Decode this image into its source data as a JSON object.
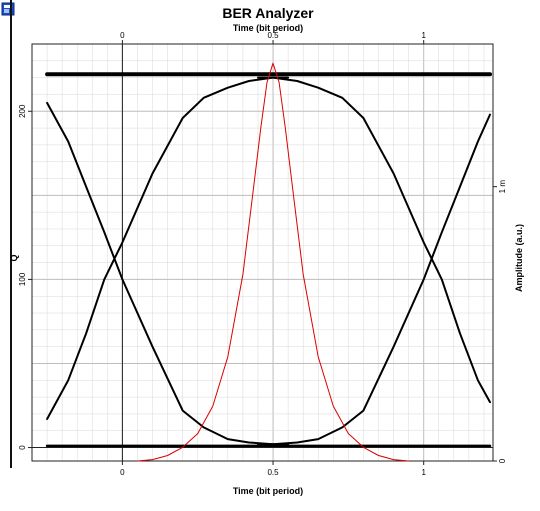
{
  "window": {
    "icon": "window-app-icon"
  },
  "chart_data": {
    "type": "line",
    "title": "BER Analyzer",
    "top_xlabel": "Time (bit period)",
    "bottom_xlabel": "Time (bit period)",
    "ylabel_left": "Q",
    "ylabel_right": "Amplitude (a.u.)",
    "xlim": [
      -0.3,
      1.23
    ],
    "ylim_left": [
      -8,
      240
    ],
    "ylim_right": [
      0,
      0.00152
    ],
    "top_ticks": [
      "0",
      "0.5",
      "1"
    ],
    "bottom_ticks": [
      "0",
      "0.5",
      "1"
    ],
    "left_ticks": [
      "0",
      "100",
      "200"
    ],
    "right_ticks": [
      "0",
      "1 m"
    ],
    "grid": true,
    "colors": {
      "eye": "#000000",
      "q_curve": "#dd0000",
      "grid": "#d8d8d8",
      "frame": "#222222"
    },
    "series": [
      {
        "role": "eye-rising",
        "x": [
          -0.25,
          -0.18,
          -0.12,
          -0.06,
          0.0,
          0.1,
          0.2,
          0.27,
          0.35,
          0.42,
          0.5,
          0.55
        ],
        "y": [
          17,
          40,
          68,
          100,
          122,
          163,
          196,
          208,
          214,
          218,
          220,
          220
        ]
      },
      {
        "role": "eye-falling",
        "x": [
          -0.25,
          -0.18,
          -0.12,
          -0.06,
          0.0,
          0.1,
          0.2,
          0.27,
          0.35,
          0.42,
          0.5,
          0.55
        ],
        "y": [
          205,
          182,
          155,
          128,
          100,
          60,
          22,
          12,
          5,
          3,
          2,
          2
        ]
      },
      {
        "role": "eye-rising-right",
        "x": [
          0.45,
          0.5,
          0.58,
          0.65,
          0.73,
          0.8,
          0.9,
          1.0,
          1.06,
          1.12,
          1.18,
          1.22
        ],
        "y": [
          2,
          2,
          3,
          5,
          12,
          22,
          60,
          100,
          128,
          155,
          182,
          198
        ]
      },
      {
        "role": "eye-falling-right",
        "x": [
          0.45,
          0.5,
          0.58,
          0.65,
          0.73,
          0.8,
          0.9,
          1.0,
          1.06,
          1.12,
          1.18,
          1.22
        ],
        "y": [
          220,
          220,
          218,
          214,
          208,
          196,
          163,
          122,
          100,
          68,
          40,
          27
        ]
      },
      {
        "role": "top-rail",
        "x": [
          -0.25,
          1.22
        ],
        "y": [
          222,
          222
        ]
      },
      {
        "role": "bottom-rail",
        "x": [
          -0.25,
          1.22
        ],
        "y": [
          1,
          1
        ]
      },
      {
        "role": "q-factor",
        "x": [
          0.05,
          0.1,
          0.15,
          0.2,
          0.25,
          0.3,
          0.35,
          0.4,
          0.43,
          0.46,
          0.48,
          0.5,
          0.52,
          0.54,
          0.57,
          0.6,
          0.65,
          0.7,
          0.75,
          0.8,
          0.85,
          0.9,
          0.95
        ],
        "y": [
          0,
          5e-06,
          2e-05,
          5e-05,
          0.0001,
          0.0002,
          0.00038,
          0.00068,
          0.00095,
          0.00122,
          0.00138,
          0.00145,
          0.00138,
          0.00122,
          0.00095,
          0.00068,
          0.00038,
          0.0002,
          0.0001,
          5e-05,
          2e-05,
          5e-06,
          0
        ]
      }
    ]
  }
}
